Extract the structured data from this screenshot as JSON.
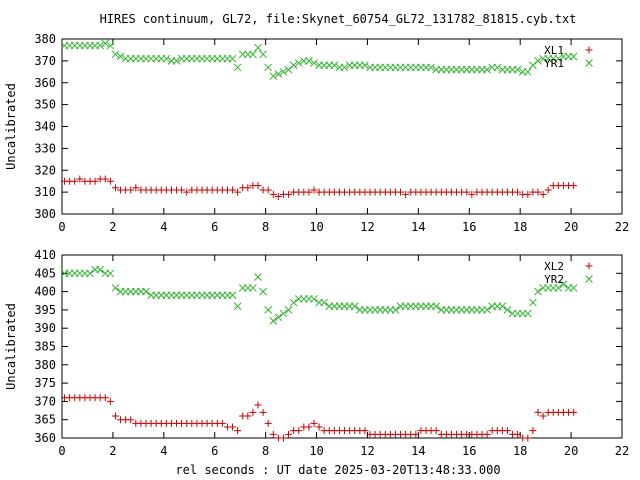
{
  "title": "HIRES continuum, GL72, file:Skynet_60754_GL72_131782_81815.cyb.txt",
  "xlabel": "rel seconds : UT date 2025-03-20T13:48:33.000",
  "colors": {
    "red": "#cc0000",
    "green": "#2fb52f"
  },
  "chart_data": [
    {
      "type": "scatter",
      "ylabel": "Uncalibrated",
      "xlim": [
        0,
        22
      ],
      "ylim": [
        300,
        380
      ],
      "xticks": [
        0,
        2,
        4,
        6,
        8,
        10,
        12,
        14,
        16,
        18,
        20,
        22
      ],
      "yticks": [
        300,
        310,
        320,
        330,
        340,
        350,
        360,
        370,
        380
      ],
      "legend_position": "top-right",
      "series": [
        {
          "name": "XL1",
          "marker": "plus",
          "color": "#cc0000",
          "x": [
            0.1,
            0.3,
            0.5,
            0.7,
            0.9,
            1.1,
            1.3,
            1.5,
            1.7,
            1.9,
            2.1,
            2.3,
            2.5,
            2.7,
            2.9,
            3.1,
            3.3,
            3.5,
            3.7,
            3.9,
            4.1,
            4.3,
            4.5,
            4.7,
            4.9,
            5.1,
            5.3,
            5.5,
            5.7,
            5.9,
            6.1,
            6.3,
            6.5,
            6.7,
            6.9,
            7.1,
            7.3,
            7.5,
            7.7,
            7.9,
            8.1,
            8.3,
            8.5,
            8.7,
            8.9,
            9.1,
            9.3,
            9.5,
            9.7,
            9.9,
            10.1,
            10.3,
            10.5,
            10.7,
            10.9,
            11.1,
            11.3,
            11.5,
            11.7,
            11.9,
            12.1,
            12.3,
            12.5,
            12.7,
            12.9,
            13.1,
            13.3,
            13.5,
            13.7,
            13.9,
            14.1,
            14.3,
            14.5,
            14.7,
            14.9,
            15.1,
            15.3,
            15.5,
            15.7,
            15.9,
            16.1,
            16.3,
            16.5,
            16.7,
            16.9,
            17.1,
            17.3,
            17.5,
            17.7,
            17.9,
            18.1,
            18.3,
            18.5,
            18.7,
            18.9,
            19.1,
            19.3,
            19.5,
            19.7,
            19.9,
            20.1
          ],
          "y": [
            315,
            315,
            315,
            316,
            315,
            315,
            315,
            316,
            316,
            315,
            312,
            311,
            311,
            311,
            312,
            311,
            311,
            311,
            311,
            311,
            311,
            311,
            311,
            311,
            310,
            311,
            311,
            311,
            311,
            311,
            311,
            311,
            311,
            311,
            310,
            312,
            312,
            313,
            313,
            311,
            311,
            309,
            308,
            309,
            309,
            310,
            310,
            310,
            310,
            311,
            310,
            310,
            310,
            310,
            310,
            310,
            310,
            310,
            310,
            310,
            310,
            310,
            310,
            310,
            310,
            310,
            310,
            309,
            310,
            310,
            310,
            310,
            310,
            310,
            310,
            310,
            310,
            310,
            310,
            310,
            309,
            310,
            310,
            310,
            310,
            310,
            310,
            310,
            310,
            310,
            309,
            309,
            310,
            310,
            309,
            311,
            313,
            313,
            313,
            313,
            313
          ]
        },
        {
          "name": "YR1",
          "marker": "cross",
          "color": "#2fb52f",
          "x": [
            0.1,
            0.3,
            0.5,
            0.7,
            0.9,
            1.1,
            1.3,
            1.5,
            1.7,
            1.9,
            2.1,
            2.3,
            2.5,
            2.7,
            2.9,
            3.1,
            3.3,
            3.5,
            3.7,
            3.9,
            4.1,
            4.3,
            4.5,
            4.7,
            4.9,
            5.1,
            5.3,
            5.5,
            5.7,
            5.9,
            6.1,
            6.3,
            6.5,
            6.7,
            6.9,
            7.1,
            7.3,
            7.5,
            7.7,
            7.9,
            8.1,
            8.3,
            8.5,
            8.7,
            8.9,
            9.1,
            9.3,
            9.5,
            9.7,
            9.9,
            10.1,
            10.3,
            10.5,
            10.7,
            10.9,
            11.1,
            11.3,
            11.5,
            11.7,
            11.9,
            12.1,
            12.3,
            12.5,
            12.7,
            12.9,
            13.1,
            13.3,
            13.5,
            13.7,
            13.9,
            14.1,
            14.3,
            14.5,
            14.7,
            14.9,
            15.1,
            15.3,
            15.5,
            15.7,
            15.9,
            16.1,
            16.3,
            16.5,
            16.7,
            16.9,
            17.1,
            17.3,
            17.5,
            17.7,
            17.9,
            18.1,
            18.3,
            18.5,
            18.7,
            18.9,
            19.1,
            19.3,
            19.5,
            19.7,
            19.9,
            20.1
          ],
          "y": [
            377,
            377,
            377,
            377,
            377,
            377,
            377,
            377,
            378,
            377,
            373,
            372,
            371,
            371,
            371,
            371,
            371,
            371,
            371,
            371,
            371,
            370,
            370,
            371,
            371,
            371,
            371,
            371,
            371,
            371,
            371,
            371,
            371,
            371,
            367,
            373,
            373,
            373,
            376,
            373,
            367,
            363,
            364,
            365,
            366,
            368,
            369,
            370,
            370,
            369,
            368,
            368,
            368,
            368,
            367,
            367,
            368,
            368,
            368,
            368,
            367,
            367,
            367,
            367,
            367,
            367,
            367,
            367,
            367,
            367,
            367,
            367,
            367,
            366,
            366,
            366,
            366,
            366,
            366,
            366,
            366,
            366,
            366,
            366,
            367,
            367,
            366,
            366,
            366,
            366,
            365,
            365,
            368,
            370,
            371,
            371,
            371,
            371,
            372,
            372,
            372
          ]
        }
      ]
    },
    {
      "type": "scatter",
      "ylabel": "Uncalibrated",
      "xlim": [
        0,
        22
      ],
      "ylim": [
        360,
        410
      ],
      "xticks": [
        0,
        2,
        4,
        6,
        8,
        10,
        12,
        14,
        16,
        18,
        20,
        22
      ],
      "yticks": [
        360,
        365,
        370,
        375,
        380,
        385,
        390,
        395,
        400,
        405,
        410
      ],
      "legend_position": "top-right",
      "series": [
        {
          "name": "XL2",
          "marker": "plus",
          "color": "#cc0000",
          "x": [
            0.1,
            0.3,
            0.5,
            0.7,
            0.9,
            1.1,
            1.3,
            1.5,
            1.7,
            1.9,
            2.1,
            2.3,
            2.5,
            2.7,
            2.9,
            3.1,
            3.3,
            3.5,
            3.7,
            3.9,
            4.1,
            4.3,
            4.5,
            4.7,
            4.9,
            5.1,
            5.3,
            5.5,
            5.7,
            5.9,
            6.1,
            6.3,
            6.5,
            6.7,
            6.9,
            7.1,
            7.3,
            7.5,
            7.7,
            7.9,
            8.1,
            8.3,
            8.5,
            8.7,
            8.9,
            9.1,
            9.3,
            9.5,
            9.7,
            9.9,
            10.1,
            10.3,
            10.5,
            10.7,
            10.9,
            11.1,
            11.3,
            11.5,
            11.7,
            11.9,
            12.1,
            12.3,
            12.5,
            12.7,
            12.9,
            13.1,
            13.3,
            13.5,
            13.7,
            13.9,
            14.1,
            14.3,
            14.5,
            14.7,
            14.9,
            15.1,
            15.3,
            15.5,
            15.7,
            15.9,
            16.1,
            16.3,
            16.5,
            16.7,
            16.9,
            17.1,
            17.3,
            17.5,
            17.7,
            17.9,
            18.1,
            18.3,
            18.5,
            18.7,
            18.9,
            19.1,
            19.3,
            19.5,
            19.7,
            19.9,
            20.1
          ],
          "y": [
            371,
            371,
            371,
            371,
            371,
            371,
            371,
            371,
            371,
            370,
            366,
            365,
            365,
            365,
            364,
            364,
            364,
            364,
            364,
            364,
            364,
            364,
            364,
            364,
            364,
            364,
            364,
            364,
            364,
            364,
            364,
            364,
            363,
            363,
            362,
            366,
            366,
            367,
            369,
            367,
            364,
            361,
            360,
            360,
            361,
            362,
            362,
            363,
            363,
            364,
            363,
            362,
            362,
            362,
            362,
            362,
            362,
            362,
            362,
            362,
            361,
            361,
            361,
            361,
            361,
            361,
            361,
            361,
            361,
            361,
            362,
            362,
            362,
            362,
            361,
            361,
            361,
            361,
            361,
            361,
            361,
            361,
            361,
            361,
            362,
            362,
            362,
            362,
            361,
            361,
            360,
            360,
            362,
            367,
            366,
            367,
            367,
            367,
            367,
            367,
            367
          ]
        },
        {
          "name": "YR2",
          "marker": "cross",
          "color": "#2fb52f",
          "x": [
            0.1,
            0.3,
            0.5,
            0.7,
            0.9,
            1.1,
            1.3,
            1.5,
            1.7,
            1.9,
            2.1,
            2.3,
            2.5,
            2.7,
            2.9,
            3.1,
            3.3,
            3.5,
            3.7,
            3.9,
            4.1,
            4.3,
            4.5,
            4.7,
            4.9,
            5.1,
            5.3,
            5.5,
            5.7,
            5.9,
            6.1,
            6.3,
            6.5,
            6.7,
            6.9,
            7.1,
            7.3,
            7.5,
            7.7,
            7.9,
            8.1,
            8.3,
            8.5,
            8.7,
            8.9,
            9.1,
            9.3,
            9.5,
            9.7,
            9.9,
            10.1,
            10.3,
            10.5,
            10.7,
            10.9,
            11.1,
            11.3,
            11.5,
            11.7,
            11.9,
            12.1,
            12.3,
            12.5,
            12.7,
            12.9,
            13.1,
            13.3,
            13.5,
            13.7,
            13.9,
            14.1,
            14.3,
            14.5,
            14.7,
            14.9,
            15.1,
            15.3,
            15.5,
            15.7,
            15.9,
            16.1,
            16.3,
            16.5,
            16.7,
            16.9,
            17.1,
            17.3,
            17.5,
            17.7,
            17.9,
            18.1,
            18.3,
            18.5,
            18.7,
            18.9,
            19.1,
            19.3,
            19.5,
            19.7,
            19.9,
            20.1
          ],
          "y": [
            405,
            405,
            405,
            405,
            405,
            405,
            406,
            406,
            405,
            405,
            401,
            400,
            400,
            400,
            400,
            400,
            400,
            399,
            399,
            399,
            399,
            399,
            399,
            399,
            399,
            399,
            399,
            399,
            399,
            399,
            399,
            399,
            399,
            399,
            396,
            401,
            401,
            401,
            404,
            400,
            395,
            392,
            393,
            394,
            395,
            397,
            398,
            398,
            398,
            398,
            397,
            397,
            396,
            396,
            396,
            396,
            396,
            396,
            395,
            395,
            395,
            395,
            395,
            395,
            395,
            395,
            396,
            396,
            396,
            396,
            396,
            396,
            396,
            396,
            395,
            395,
            395,
            395,
            395,
            395,
            395,
            395,
            395,
            395,
            396,
            396,
            396,
            395,
            394,
            394,
            394,
            394,
            397,
            400,
            401,
            401,
            401,
            401,
            402,
            401,
            401
          ]
        }
      ]
    }
  ]
}
